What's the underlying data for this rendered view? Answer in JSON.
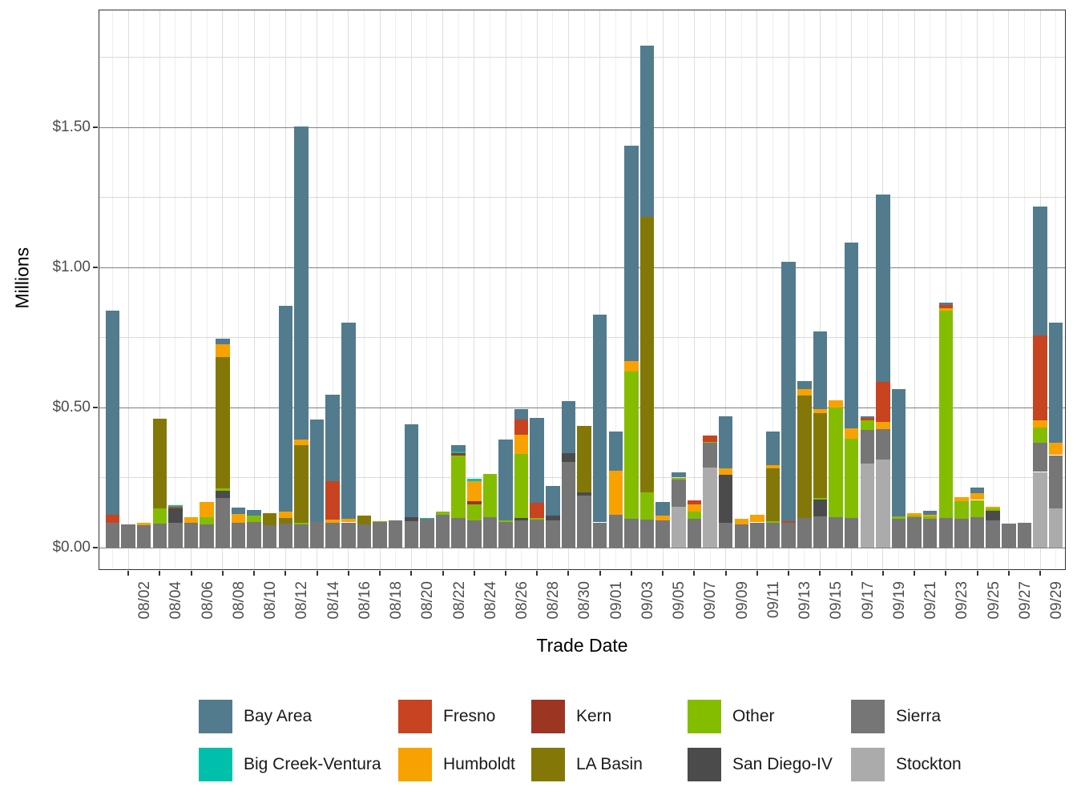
{
  "chart_data": {
    "type": "bar",
    "stacked": true,
    "title": "",
    "xlabel": "Trade Date",
    "ylabel": "Millions",
    "legend_position": "bottom",
    "grid": true,
    "ylim": [
      0,
      1.92
    ],
    "y_ticks": [
      {
        "value": 0.0,
        "label": "$0.00"
      },
      {
        "value": 0.5,
        "label": "$0.50"
      },
      {
        "value": 1.0,
        "label": "$1.00"
      },
      {
        "value": 1.5,
        "label": "$1.50"
      }
    ],
    "y_minor_ticks": [
      0.25,
      0.75,
      1.25,
      1.75
    ],
    "categories": [
      "08/01",
      "08/02",
      "08/03",
      "08/04",
      "08/05",
      "08/06",
      "08/07",
      "08/08",
      "08/09",
      "08/10",
      "08/11",
      "08/12",
      "08/13",
      "08/14",
      "08/15",
      "08/16",
      "08/17",
      "08/18",
      "08/19",
      "08/20",
      "08/21",
      "08/22",
      "08/23",
      "08/24",
      "08/25",
      "08/26",
      "08/27",
      "08/28",
      "08/29",
      "08/30",
      "08/31",
      "09/01",
      "09/02",
      "09/03",
      "09/04",
      "09/05",
      "09/06",
      "09/07",
      "09/08",
      "09/09",
      "09/10",
      "09/11",
      "09/12",
      "09/13",
      "09/14",
      "09/15",
      "09/16",
      "09/17",
      "09/18",
      "09/19",
      "09/20",
      "09/21",
      "09/22",
      "09/23",
      "09/24",
      "09/25",
      "09/26",
      "09/27",
      "09/28",
      "09/29",
      "09/30"
    ],
    "x_labeled_tick_indices": [
      1,
      3,
      5,
      7,
      9,
      11,
      13,
      15,
      17,
      19,
      21,
      23,
      25,
      27,
      29,
      31,
      33,
      35,
      37,
      39,
      41,
      43,
      45,
      47,
      49,
      51,
      53,
      55,
      57,
      59
    ],
    "series": [
      {
        "name": "Stockton",
        "color": "#ababab",
        "values": [
          0,
          0,
          0,
          0,
          0,
          0,
          0,
          0,
          0,
          0,
          0,
          0,
          0,
          0,
          0,
          0,
          0,
          0,
          0,
          0,
          0,
          0,
          0,
          0,
          0,
          0,
          0,
          0,
          0,
          0,
          0,
          0,
          0,
          0,
          0,
          0,
          0.147,
          0,
          0.285,
          0,
          0,
          0,
          0,
          0,
          0,
          0,
          0,
          0,
          0.3,
          0.314,
          0,
          0,
          0,
          0,
          0,
          0,
          0,
          0,
          0,
          0.27,
          0.139
        ]
      },
      {
        "name": "Sierra",
        "color": "#767676",
        "values": [
          0.089,
          0.084,
          0.081,
          0.087,
          0.088,
          0.089,
          0.082,
          0.178,
          0.088,
          0.091,
          0.08,
          0.085,
          0.083,
          0.092,
          0.088,
          0.09,
          0.084,
          0.091,
          0.097,
          0.094,
          0.102,
          0.118,
          0.105,
          0.096,
          0.109,
          0.091,
          0.097,
          0.1,
          0.097,
          0.307,
          0.186,
          0.09,
          0.118,
          0.104,
          0.101,
          0.098,
          0.097,
          0.102,
          0.088,
          0.088,
          0.083,
          0.09,
          0.09,
          0.09,
          0.105,
          0.112,
          0.109,
          0.105,
          0.12,
          0.11,
          0.102,
          0.11,
          0.104,
          0.105,
          0.103,
          0.108,
          0.098,
          0.087,
          0.09,
          0.103,
          0.191
        ]
      },
      {
        "name": "San Diego-IV",
        "color": "#4b4b4b",
        "values": [
          0,
          0,
          0,
          0,
          0.051,
          0,
          0,
          0.026,
          0,
          0,
          0,
          0,
          0,
          0,
          0,
          0,
          0,
          0,
          0,
          0.015,
          0,
          0,
          0,
          0,
          0,
          0,
          0.01,
          0,
          0.018,
          0.029,
          0.012,
          0,
          0,
          0,
          0,
          0,
          0,
          0,
          0,
          0.172,
          0,
          0,
          0,
          0,
          0,
          0.059,
          0,
          0,
          0,
          0,
          0,
          0,
          0,
          0,
          0,
          0,
          0.034,
          0,
          0,
          0,
          0
        ]
      },
      {
        "name": "Other",
        "color": "#84bd00",
        "values": [
          0,
          0,
          0,
          0.054,
          0,
          0,
          0.026,
          0.007,
          0,
          0.023,
          0,
          0,
          0.007,
          0,
          0,
          0,
          0,
          0.004,
          0,
          0,
          0,
          0.012,
          0.224,
          0.059,
          0.154,
          0.006,
          0.227,
          0.005,
          0,
          0,
          0,
          0,
          0,
          0.525,
          0.097,
          0,
          0.006,
          0.028,
          0.005,
          0,
          0,
          0,
          0.005,
          0,
          0,
          0.006,
          0.391,
          0.285,
          0.035,
          0,
          0.01,
          0.005,
          0.008,
          0.74,
          0.063,
          0.062,
          0.007,
          0,
          0,
          0.056,
          0
        ]
      },
      {
        "name": "LA Basin",
        "color": "#837807",
        "values": [
          0,
          0,
          0,
          0.319,
          0,
          0,
          0,
          0.469,
          0,
          0,
          0.044,
          0.02,
          0.275,
          0,
          0,
          0,
          0.029,
          0,
          0,
          0,
          0,
          0,
          0,
          0,
          0,
          0,
          0,
          0,
          0,
          0,
          0.237,
          0,
          0,
          0,
          0.983,
          0,
          0,
          0,
          0,
          0,
          0,
          0,
          0.188,
          0,
          0.438,
          0.304,
          0,
          0,
          0,
          0,
          0,
          0,
          0,
          0,
          0,
          0,
          0,
          0,
          0,
          0,
          0
        ]
      },
      {
        "name": "Kern",
        "color": "#9c3522",
        "values": [
          0,
          0,
          0,
          0,
          0,
          0,
          0,
          0,
          0,
          0,
          0,
          0,
          0,
          0,
          0,
          0,
          0,
          0,
          0,
          0,
          0,
          0,
          0.009,
          0.012,
          0,
          0,
          0,
          0,
          0,
          0,
          0,
          0,
          0,
          0,
          0,
          0,
          0,
          0,
          0,
          0,
          0,
          0,
          0,
          0,
          0,
          0,
          0,
          0,
          0,
          0,
          0,
          0,
          0,
          0,
          0,
          0,
          0,
          0,
          0,
          0,
          0
        ]
      },
      {
        "name": "Humboldt",
        "color": "#f7a200",
        "values": [
          0,
          0,
          0.009,
          0,
          0,
          0.019,
          0.055,
          0.046,
          0.032,
          0,
          0,
          0.024,
          0.02,
          0,
          0.013,
          0.013,
          0,
          0,
          0,
          0,
          0,
          0,
          0,
          0.071,
          0,
          0,
          0.069,
          0,
          0,
          0,
          0,
          0,
          0.156,
          0.038,
          0,
          0.016,
          0,
          0.025,
          0,
          0.023,
          0.019,
          0.027,
          0.012,
          0,
          0.024,
          0.014,
          0.025,
          0.035,
          0,
          0.024,
          0,
          0.008,
          0.006,
          0.008,
          0.014,
          0.024,
          0.008,
          0,
          0,
          0.025,
          0.043
        ]
      },
      {
        "name": "Fresno",
        "color": "#c8431f",
        "values": [
          0.029,
          0,
          0,
          0,
          0.008,
          0,
          0,
          0,
          0,
          0,
          0,
          0,
          0,
          0,
          0.135,
          0,
          0,
          0,
          0,
          0,
          0,
          0,
          0,
          0,
          0,
          0,
          0.055,
          0.055,
          0,
          0,
          0,
          0,
          0,
          0,
          0,
          0,
          0,
          0.014,
          0.022,
          0,
          0,
          0,
          0,
          0.005,
          0,
          0,
          0,
          0,
          0.008,
          0.144,
          0,
          0,
          0,
          0.012,
          0,
          0,
          0,
          0,
          0,
          0.303,
          0
        ]
      },
      {
        "name": "Big Creek-Ventura",
        "color": "#00c0ac",
        "values": [
          0,
          0,
          0,
          0,
          0.004,
          0,
          0,
          0,
          0,
          0,
          0,
          0,
          0,
          0,
          0,
          0,
          0,
          0,
          0,
          0,
          0.005,
          0,
          0.006,
          0.007,
          0,
          0,
          0,
          0,
          0,
          0,
          0,
          0,
          0,
          0,
          0,
          0,
          0,
          0,
          0,
          0,
          0,
          0,
          0,
          0,
          0,
          0,
          0,
          0,
          0,
          0,
          0,
          0,
          0,
          0,
          0,
          0,
          0,
          0,
          0,
          0,
          0
        ]
      },
      {
        "name": "Bay Area",
        "color": "#527b8e",
        "values": [
          0.728,
          0,
          0,
          0,
          0,
          0,
          0,
          0.021,
          0.022,
          0.02,
          0,
          0.735,
          1.117,
          0.364,
          0.309,
          0.7,
          0,
          0,
          0,
          0.332,
          0,
          0,
          0.021,
          0,
          0,
          0.289,
          0.037,
          0.302,
          0.106,
          0.186,
          0,
          0.741,
          0.141,
          0.768,
          0.61,
          0.049,
          0.019,
          0,
          0,
          0.185,
          0,
          0,
          0.119,
          0.924,
          0.026,
          0.276,
          0,
          0.665,
          0.005,
          0.668,
          0.453,
          0,
          0.014,
          0.008,
          0,
          0.019,
          0,
          0,
          0,
          0.46,
          0.43
        ]
      }
    ],
    "legend_order": [
      "Bay Area",
      "Big Creek-Ventura",
      "Fresno",
      "Humboldt",
      "Kern",
      "LA Basin",
      "Other",
      "San Diego-IV",
      "Sierra",
      "Stockton"
    ],
    "legend_rows": 2
  },
  "style_colors": {
    "grid_major": "#808080",
    "grid_minor": "#d9d9d9",
    "grid_vert_major": "#dedede",
    "grid_vert_minor": "#efefef",
    "axis_text": "#4d4d4d",
    "panel_border": "#333333"
  }
}
